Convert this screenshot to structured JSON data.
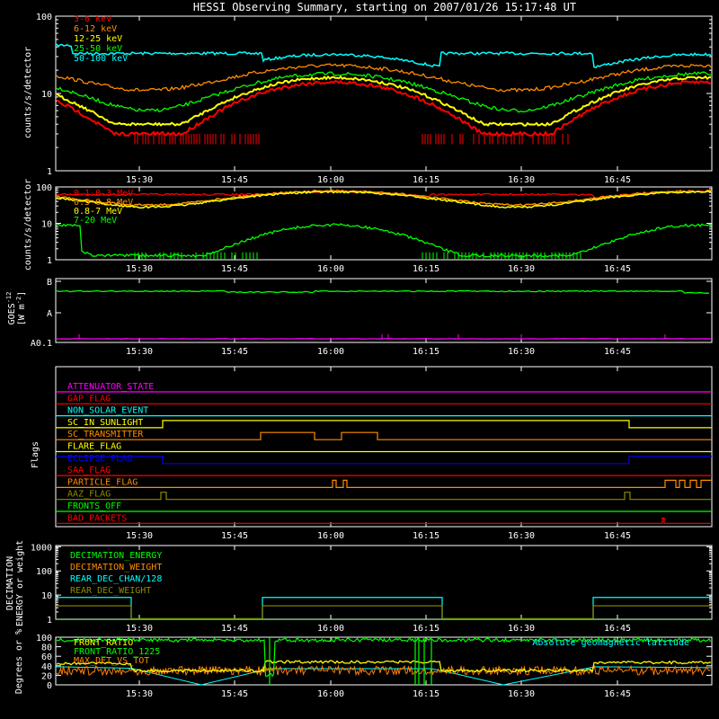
{
  "title": "HESSI Observing Summary, starting on 2007/01/26 15:17:48 UT",
  "time_ticks": [
    "15:30",
    "15:45",
    "16:00",
    "16:15",
    "16:30",
    "16:45"
  ],
  "colors": {
    "red": "#ff0000",
    "orange": "#ff8c00",
    "yellow": "#ffff00",
    "green": "#00ff00",
    "cyan": "#00ffff",
    "magenta": "#ff00ff",
    "blue": "#0000ff",
    "olive": "#8c8c00",
    "white": "#ffffff",
    "dark_orange": "#ff7f00"
  },
  "chart_data": [
    {
      "id": "panel1",
      "type": "line",
      "ylabel": "counts/s/detector",
      "yscale": "log",
      "ylim": [
        1,
        100
      ],
      "ytick_labels": [
        "1",
        "10",
        "100"
      ],
      "series": [
        {
          "name": "3-6 keV",
          "color": "#ff0000"
        },
        {
          "name": "6-12 keV",
          "color": "#ff8c00"
        },
        {
          "name": "12-25 keV",
          "color": "#ffff00"
        },
        {
          "name": "25-50 keV",
          "color": "#00ff00"
        },
        {
          "name": "50-100 keV",
          "color": "#00ffff"
        }
      ]
    },
    {
      "id": "panel2",
      "type": "line",
      "ylabel": "counts/s/detector",
      "yscale": "log",
      "ylim": [
        1,
        100
      ],
      "ytick_labels": [
        "1",
        "10",
        "100"
      ],
      "series": [
        {
          "name": "0.1-0.3 MeV",
          "color": "#ff0000"
        },
        {
          "name": "0.3-0.8 MeV",
          "color": "#ff8c00"
        },
        {
          "name": "0.8-7 MeV",
          "color": "#ffff00"
        },
        {
          "name": "7-20 MeV",
          "color": "#00ff00"
        }
      ]
    },
    {
      "id": "panel3",
      "type": "line",
      "ylabel_line1": "GOES",
      "ylabel_line2": "[W m",
      "ylabel_sup": "-2",
      "ylabel_sup2": "]",
      "ylabel_sub": "-12",
      "ytick_labels": [
        "A0.1",
        "A",
        "B"
      ]
    },
    {
      "id": "panel4",
      "type": "line",
      "ylabel": "Flags",
      "flags": [
        {
          "name": "ATTENUATOR_STATE",
          "color": "#ff00ff"
        },
        {
          "name": "GAP_FLAG",
          "color": "#ff0000"
        },
        {
          "name": "NON_SOLAR_EVENT",
          "color": "#00ffff"
        },
        {
          "name": "SC_IN_SUNLIGHT",
          "color": "#ffff00"
        },
        {
          "name": "SC_TRANSMITTER",
          "color": "#ff8c00"
        },
        {
          "name": "FLARE_FLAG",
          "color": "#ffff00"
        },
        {
          "name": "ECLIPSE_FLAG",
          "color": "#0000ff"
        },
        {
          "name": "SAA_FLAG",
          "color": "#ff0000"
        },
        {
          "name": "PARTICLE_FLAG",
          "color": "#ff8c00"
        },
        {
          "name": "AAZ_FLAG",
          "color": "#8c8c00"
        },
        {
          "name": "FRONTS_OFF",
          "color": "#00ff00"
        },
        {
          "name": "BAD_PACKETS",
          "color": "#ff0000"
        }
      ]
    },
    {
      "id": "panel5",
      "type": "line",
      "ylabel_line1": "DECIMATION",
      "ylabel_line2": "ENERGY or weight",
      "yscale": "log",
      "ytick_labels": [
        "1",
        "10",
        "100",
        "1000"
      ],
      "series": [
        {
          "name": "DECIMATION_ENERGY",
          "color": "#00ff00"
        },
        {
          "name": "DECIMATION_WEIGHT",
          "color": "#ff8c00"
        },
        {
          "name": "REAR_DEC_CHAN/128",
          "color": "#00ffff"
        },
        {
          "name": "REAR_DEC_WEIGHT",
          "color": "#8c8c00"
        }
      ]
    },
    {
      "id": "panel6",
      "type": "line",
      "ylabel": "Degrees or %",
      "ylim": [
        0,
        100
      ],
      "ytick_labels": [
        "0",
        "20",
        "40",
        "60",
        "80",
        "100"
      ],
      "series": [
        {
          "name": "FRONT_RATIO",
          "color": "#ffff00"
        },
        {
          "name": "FRONT_RATIO_1225",
          "color": "#00ff00"
        },
        {
          "name": "MAX_DET_VS_TOT",
          "color": "#ff8c00"
        },
        {
          "name": "Absolute geomagnetic latitude",
          "color": "#00ffff"
        }
      ]
    }
  ]
}
